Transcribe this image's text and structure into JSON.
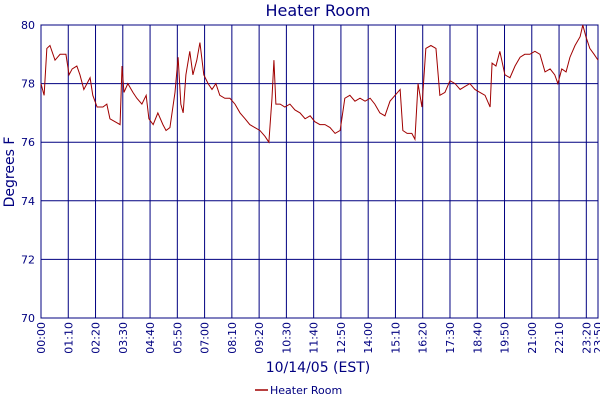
{
  "chart_data": {
    "type": "line",
    "title": "Heater Room",
    "xlabel": "10/14/05 (EST)",
    "ylabel": "Degrees F",
    "x": [
      0,
      8,
      15,
      23,
      36,
      49,
      64,
      72,
      80,
      92,
      100,
      110,
      126,
      133,
      144,
      159,
      169,
      177,
      190,
      203,
      208,
      213,
      223,
      236,
      246,
      259,
      270,
      277,
      288,
      300,
      313,
      321,
      331,
      344,
      352,
      359,
      365,
      372,
      382,
      390,
      400,
      408,
      418,
      429,
      439,
      449,
      459,
      472,
      485,
      498,
      511,
      524,
      536,
      549,
      562,
      575,
      585,
      593,
      598,
      603,
      614,
      626,
      639,
      652,
      665,
      678,
      691,
      703,
      716,
      729,
      742,
      755,
      768,
      780,
      793,
      806,
      819,
      832,
      845,
      857,
      870,
      883,
      896,
      909,
      922,
      929,
      940,
      952,
      960,
      968,
      978,
      988,
      1001,
      1014,
      1024,
      1037,
      1050,
      1063,
      1076,
      1088,
      1101,
      1114,
      1127,
      1140,
      1153,
      1158,
      1168,
      1178,
      1191,
      1204,
      1217,
      1230,
      1242,
      1255,
      1268,
      1281,
      1294,
      1307,
      1319,
      1327,
      1337,
      1348,
      1358,
      1371,
      1384,
      1391,
      1399,
      1409,
      1420,
      1430
    ],
    "series": [
      {
        "name": "Heater Room",
        "color": "#a00000",
        "values": [
          78.0,
          77.6,
          79.2,
          79.3,
          78.8,
          79.0,
          79.0,
          78.3,
          78.5,
          78.6,
          78.3,
          77.8,
          78.2,
          77.6,
          77.2,
          77.2,
          77.3,
          76.8,
          76.7,
          76.6,
          78.6,
          77.7,
          78.0,
          77.7,
          77.5,
          77.3,
          77.6,
          76.8,
          76.6,
          77.0,
          76.6,
          76.4,
          76.5,
          77.7,
          78.9,
          77.3,
          77.0,
          78.3,
          79.1,
          78.3,
          78.8,
          79.4,
          78.3,
          78.0,
          77.8,
          78.0,
          77.6,
          77.5,
          77.5,
          77.3,
          77.0,
          76.8,
          76.6,
          76.5,
          76.4,
          76.2,
          76.0,
          77.5,
          78.8,
          77.3,
          77.3,
          77.2,
          77.3,
          77.1,
          77.0,
          76.8,
          76.9,
          76.7,
          76.6,
          76.6,
          76.5,
          76.3,
          76.4,
          77.5,
          77.6,
          77.4,
          77.5,
          77.4,
          77.5,
          77.3,
          77.0,
          76.9,
          77.4,
          77.6,
          77.8,
          76.4,
          76.3,
          76.3,
          76.1,
          78.0,
          77.2,
          79.2,
          79.3,
          79.2,
          77.6,
          77.7,
          78.1,
          78.0,
          77.8,
          77.9,
          78.0,
          77.8,
          77.7,
          77.6,
          77.2,
          78.7,
          78.6,
          79.1,
          78.3,
          78.2,
          78.6,
          78.9,
          79.0,
          79.0,
          79.1,
          79.0,
          78.4,
          78.5,
          78.3,
          78.0,
          78.5,
          78.4,
          78.9,
          79.3,
          79.6,
          80.0,
          79.6,
          79.2,
          79.0,
          78.8
        ]
      }
    ],
    "xlim": [
      0,
      1430
    ],
    "xticks": [
      {
        "value": 0,
        "label": "00:00"
      },
      {
        "value": 70,
        "label": "01:10"
      },
      {
        "value": 140,
        "label": "02:20"
      },
      {
        "value": 210,
        "label": "03:30"
      },
      {
        "value": 280,
        "label": "04:40"
      },
      {
        "value": 350,
        "label": "05:50"
      },
      {
        "value": 420,
        "label": "07:00"
      },
      {
        "value": 490,
        "label": "08:10"
      },
      {
        "value": 560,
        "label": "09:20"
      },
      {
        "value": 630,
        "label": "10:30"
      },
      {
        "value": 700,
        "label": "11:40"
      },
      {
        "value": 770,
        "label": "12:50"
      },
      {
        "value": 840,
        "label": "14:00"
      },
      {
        "value": 910,
        "label": "15:10"
      },
      {
        "value": 980,
        "label": "16:20"
      },
      {
        "value": 1050,
        "label": "17:30"
      },
      {
        "value": 1120,
        "label": "18:40"
      },
      {
        "value": 1190,
        "label": "19:50"
      },
      {
        "value": 1260,
        "label": "21:00"
      },
      {
        "value": 1330,
        "label": "22:10"
      },
      {
        "value": 1400,
        "label": "23:20"
      },
      {
        "value": 1430,
        "label": "23:50"
      }
    ],
    "ylim": [
      70,
      80
    ],
    "yticks": [
      70,
      72,
      74,
      76,
      78,
      80
    ],
    "grid": true
  }
}
